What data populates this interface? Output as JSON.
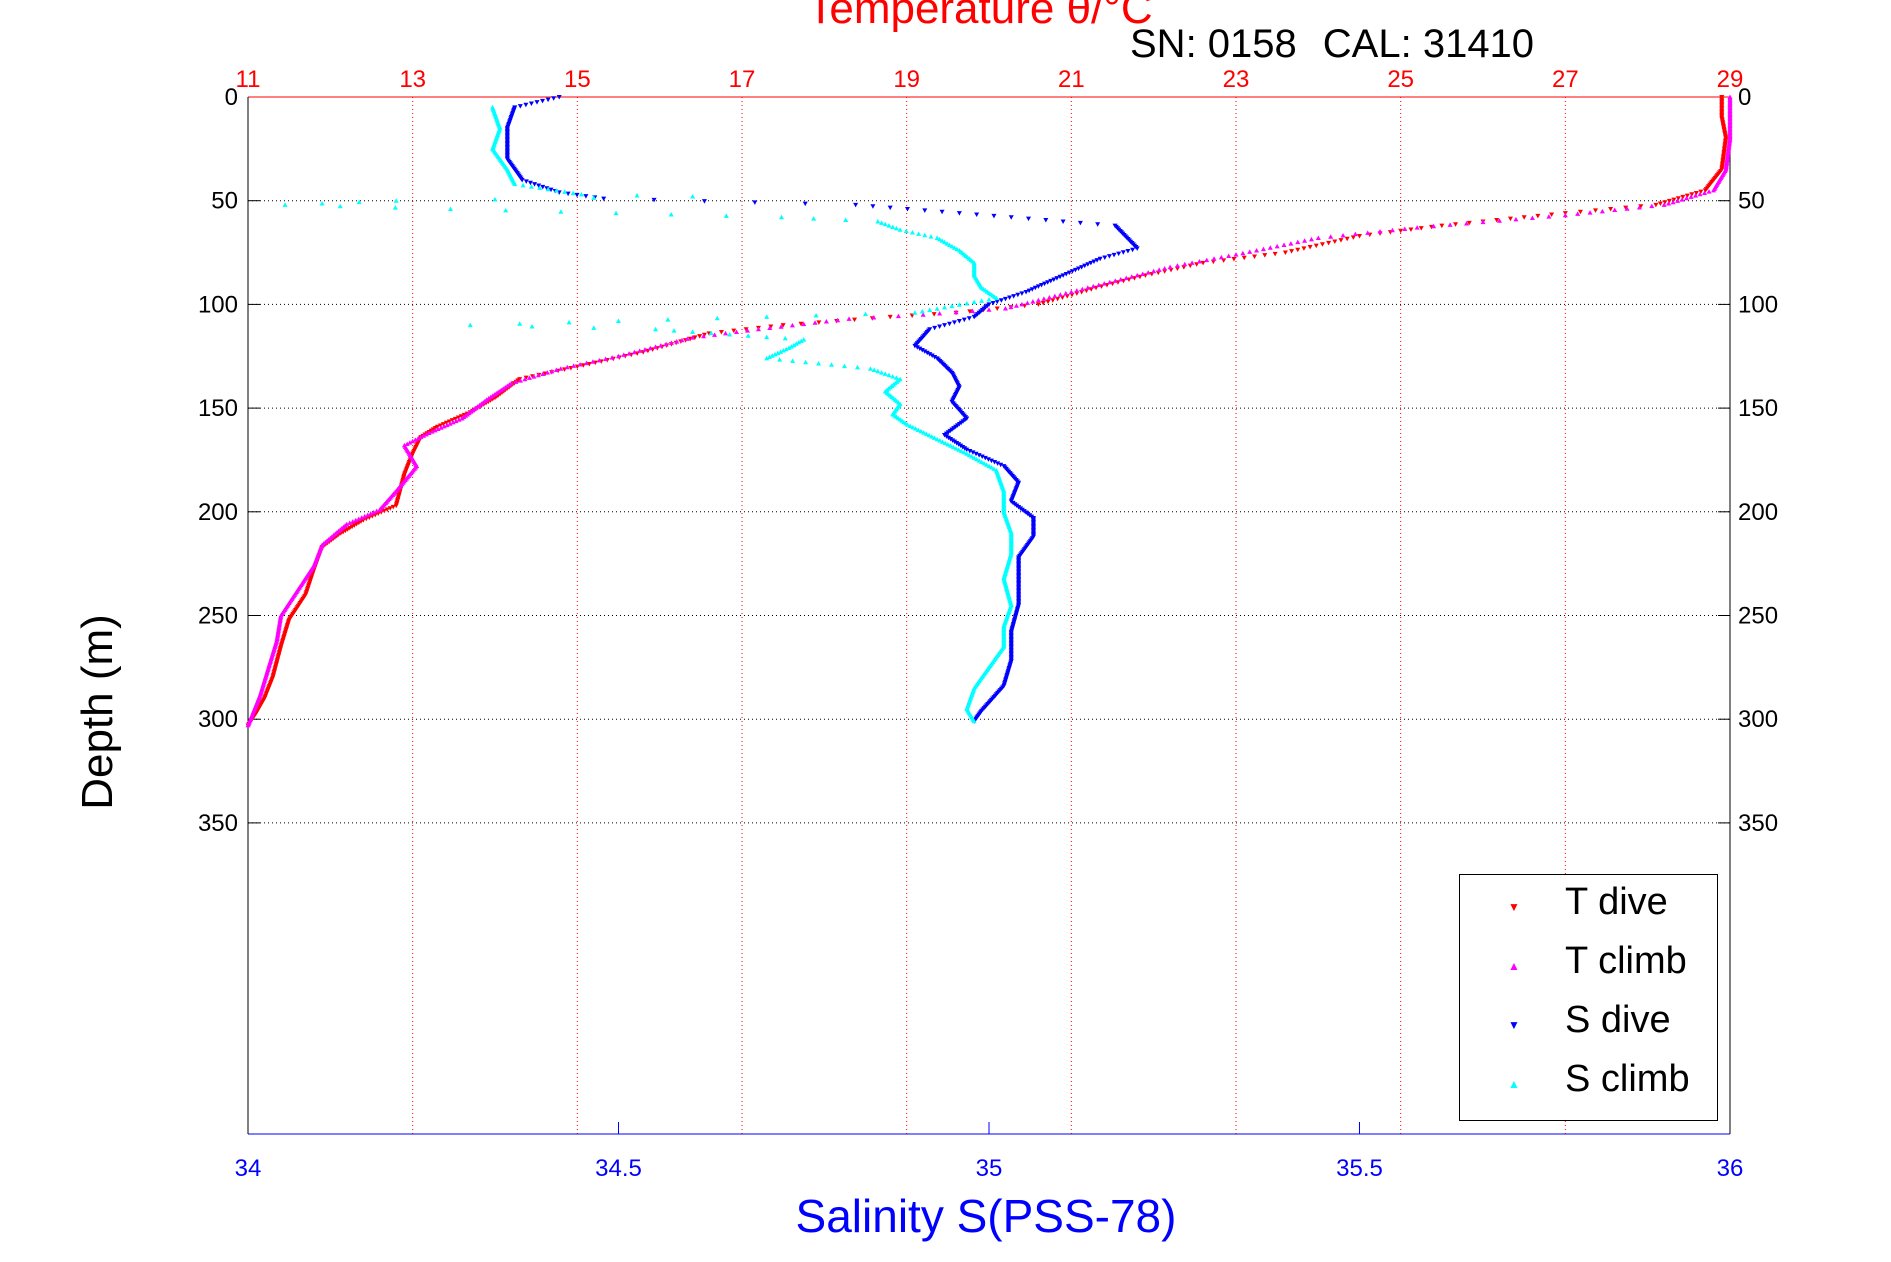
{
  "chart_data": {
    "type": "scatter",
    "title": "Temperature θ/°C",
    "subtitle": {
      "sn": "SN: 0158",
      "cal": "CAL: 31410"
    },
    "ylabel": "Depth (m)",
    "xlabel": "Salinity S(PSS-78)",
    "y_axis": {
      "ticks": [
        0,
        50,
        100,
        150,
        200,
        250,
        300,
        350
      ],
      "range": [
        0,
        500
      ],
      "reversed": true
    },
    "temperature_axis": {
      "ticks": [
        11,
        13,
        15,
        17,
        19,
        21,
        23,
        25,
        27,
        29
      ],
      "range": [
        11,
        29
      ],
      "position": "top",
      "color": "#ff0000",
      "grid": true
    },
    "salinity_axis": {
      "ticks": [
        34,
        34.5,
        35,
        35.5,
        36
      ],
      "tick_labels": [
        "34",
        "34.5",
        "35",
        "35.5",
        "36"
      ],
      "range": [
        34,
        36
      ],
      "position": "bottom",
      "color": "#0000ff"
    },
    "legend": {
      "placement": "bottom-right",
      "entries": [
        "T dive",
        "T climb",
        "S dive",
        "S climb"
      ]
    },
    "series": [
      {
        "name": "T dive",
        "axis": "temperature",
        "color": "#ff0000",
        "marker": "triangle-down",
        "points": [
          [
            28.9,
            0
          ],
          [
            28.9,
            10
          ],
          [
            28.95,
            20
          ],
          [
            28.9,
            35
          ],
          [
            28.7,
            45
          ],
          [
            28.1,
            52
          ],
          [
            27.0,
            56
          ],
          [
            25.5,
            62
          ],
          [
            24.5,
            67
          ],
          [
            23.6,
            75
          ],
          [
            22.6,
            80
          ],
          [
            21.9,
            86
          ],
          [
            21.3,
            92
          ],
          [
            20.6,
            100
          ],
          [
            19.6,
            104
          ],
          [
            18.8,
            106
          ],
          [
            17.5,
            110
          ],
          [
            16.6,
            114
          ],
          [
            15.8,
            123
          ],
          [
            15.0,
            130
          ],
          [
            14.3,
            136
          ],
          [
            14.0,
            145
          ],
          [
            13.7,
            152
          ],
          [
            13.3,
            159
          ],
          [
            13.1,
            164
          ],
          [
            13.0,
            172
          ],
          [
            12.9,
            182
          ],
          [
            12.8,
            197
          ],
          [
            12.4,
            204
          ],
          [
            12.1,
            211
          ],
          [
            11.9,
            217
          ],
          [
            11.8,
            228
          ],
          [
            11.7,
            240
          ],
          [
            11.5,
            252
          ],
          [
            11.4,
            265
          ],
          [
            11.3,
            280
          ],
          [
            11.2,
            290
          ],
          [
            11.1,
            297
          ],
          [
            11.0,
            303
          ]
        ]
      },
      {
        "name": "T climb",
        "axis": "temperature",
        "color": "#ff00ff",
        "marker": "triangle-up",
        "points": [
          [
            29.0,
            0
          ],
          [
            29.0,
            10
          ],
          [
            29.0,
            20
          ],
          [
            28.95,
            35
          ],
          [
            28.8,
            45
          ],
          [
            28.2,
            52
          ],
          [
            27.0,
            57
          ],
          [
            25.2,
            63
          ],
          [
            24.0,
            68
          ],
          [
            23.0,
            76
          ],
          [
            22.2,
            82
          ],
          [
            21.6,
            88
          ],
          [
            20.8,
            96
          ],
          [
            20.2,
            102
          ],
          [
            19.2,
            105
          ],
          [
            18.3,
            107
          ],
          [
            17.2,
            112
          ],
          [
            16.4,
            116
          ],
          [
            15.5,
            125
          ],
          [
            14.8,
            131
          ],
          [
            14.2,
            138
          ],
          [
            13.9,
            146
          ],
          [
            13.6,
            155
          ],
          [
            13.2,
            162
          ],
          [
            12.9,
            168
          ],
          [
            13.05,
            178
          ],
          [
            12.8,
            190
          ],
          [
            12.6,
            199
          ],
          [
            12.2,
            206
          ],
          [
            11.9,
            216
          ],
          [
            11.8,
            226
          ],
          [
            11.6,
            238
          ],
          [
            11.4,
            250
          ],
          [
            11.35,
            262
          ],
          [
            11.25,
            275
          ],
          [
            11.15,
            288
          ],
          [
            11.05,
            298
          ],
          [
            11.0,
            303
          ]
        ]
      },
      {
        "name": "S dive",
        "axis": "salinity",
        "color": "#0000ff",
        "marker": "triangle-down",
        "points": [
          [
            34.42,
            0
          ],
          [
            34.36,
            5
          ],
          [
            34.35,
            15
          ],
          [
            34.35,
            30
          ],
          [
            34.37,
            40
          ],
          [
            34.42,
            46
          ],
          [
            34.48,
            49
          ],
          [
            34.82,
            52
          ],
          [
            35.17,
            62
          ],
          [
            35.2,
            73
          ],
          [
            35.15,
            78
          ],
          [
            35.1,
            86
          ],
          [
            35.05,
            94
          ],
          [
            35.0,
            100
          ],
          [
            34.98,
            106
          ],
          [
            34.92,
            112
          ],
          [
            34.9,
            120
          ],
          [
            34.93,
            126
          ],
          [
            34.95,
            133
          ],
          [
            34.96,
            140
          ],
          [
            34.95,
            147
          ],
          [
            34.97,
            155
          ],
          [
            34.94,
            163
          ],
          [
            34.97,
            170
          ],
          [
            35.02,
            178
          ],
          [
            35.04,
            186
          ],
          [
            35.03,
            195
          ],
          [
            35.06,
            203
          ],
          [
            35.06,
            212
          ],
          [
            35.04,
            222
          ],
          [
            35.04,
            235
          ],
          [
            35.04,
            245
          ],
          [
            35.03,
            258
          ],
          [
            35.03,
            272
          ],
          [
            35.02,
            284
          ],
          [
            34.99,
            296
          ],
          [
            34.98,
            301
          ]
        ]
      },
      {
        "name": "S climb",
        "axis": "salinity",
        "color": "#00ffff",
        "marker": "triangle-up",
        "points": [
          [
            34.33,
            5
          ],
          [
            34.34,
            15
          ],
          [
            34.33,
            25
          ],
          [
            34.35,
            35
          ],
          [
            34.36,
            42
          ],
          [
            34.45,
            47
          ],
          [
            34.6,
            48
          ],
          [
            34.2,
            50
          ],
          [
            34.05,
            52
          ],
          [
            34.72,
            58
          ],
          [
            34.85,
            60
          ],
          [
            34.88,
            64
          ],
          [
            34.93,
            68
          ],
          [
            34.96,
            74
          ],
          [
            34.98,
            80
          ],
          [
            34.98,
            86
          ],
          [
            34.99,
            92
          ],
          [
            35.01,
            97
          ],
          [
            34.9,
            104
          ],
          [
            34.3,
            110
          ],
          [
            34.55,
            112
          ],
          [
            34.75,
            117
          ],
          [
            34.73,
            121
          ],
          [
            34.7,
            126
          ],
          [
            34.84,
            131
          ],
          [
            34.88,
            136
          ],
          [
            34.86,
            142
          ],
          [
            34.88,
            148
          ],
          [
            34.87,
            153
          ],
          [
            34.89,
            158
          ],
          [
            34.93,
            165
          ],
          [
            34.97,
            172
          ],
          [
            35.01,
            180
          ],
          [
            35.02,
            190
          ],
          [
            35.02,
            200
          ],
          [
            35.03,
            210
          ],
          [
            35.03,
            220
          ],
          [
            35.02,
            232
          ],
          [
            35.03,
            245
          ],
          [
            35.02,
            255
          ],
          [
            35.02,
            265
          ],
          [
            35.0,
            275
          ],
          [
            34.98,
            285
          ],
          [
            34.97,
            295
          ],
          [
            34.98,
            301
          ]
        ]
      }
    ]
  },
  "colors": {
    "temperature": "#ff0000",
    "salinity": "#0000ff",
    "grid": "#000000"
  }
}
